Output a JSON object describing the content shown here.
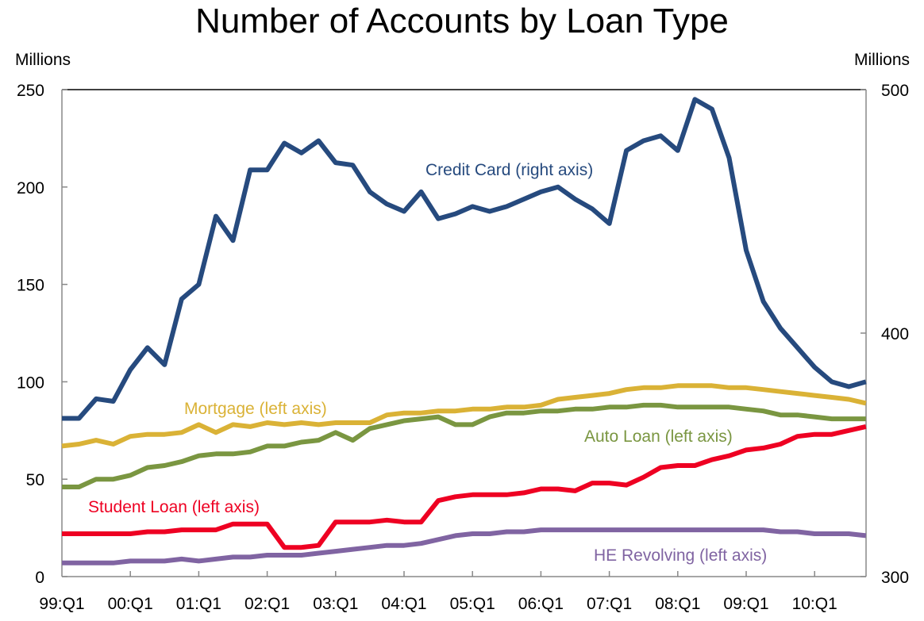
{
  "title": "Number of Accounts by Loan Type",
  "left_unit": "Millions",
  "right_unit": "Millions",
  "chart_data": {
    "type": "line",
    "title": "Number of Accounts by Loan Type",
    "xlabel": "",
    "ylabel_left": "Millions",
    "ylabel_right": "Millions",
    "ylim_left": [
      0,
      250
    ],
    "yticks_left": [
      0,
      50,
      100,
      150,
      200,
      250
    ],
    "ylim_right": [
      300,
      500
    ],
    "yticks_right": [
      300,
      400,
      500
    ],
    "grid": false,
    "legend_position": "inline labels",
    "x_tick_labels": [
      "99:Q1",
      "00:Q1",
      "01:Q1",
      "02:Q1",
      "03:Q1",
      "04:Q1",
      "05:Q1",
      "06:Q1",
      "07:Q1",
      "08:Q1",
      "09:Q1",
      "10:Q1"
    ],
    "x": [
      "99:Q1",
      "99:Q2",
      "99:Q3",
      "99:Q4",
      "00:Q1",
      "00:Q2",
      "00:Q3",
      "00:Q4",
      "01:Q1",
      "01:Q2",
      "01:Q3",
      "01:Q4",
      "02:Q1",
      "02:Q2",
      "02:Q3",
      "02:Q4",
      "03:Q1",
      "03:Q2",
      "03:Q3",
      "03:Q4",
      "04:Q1",
      "04:Q2",
      "04:Q3",
      "04:Q4",
      "05:Q1",
      "05:Q2",
      "05:Q3",
      "05:Q4",
      "06:Q1",
      "06:Q2",
      "06:Q3",
      "06:Q4",
      "07:Q1",
      "07:Q2",
      "07:Q3",
      "07:Q4",
      "08:Q1",
      "08:Q2",
      "08:Q3",
      "08:Q4",
      "09:Q1",
      "09:Q2",
      "09:Q3",
      "09:Q4",
      "10:Q1",
      "10:Q2",
      "10:Q3",
      "10:Q4"
    ],
    "series": [
      {
        "name": "Credit Card (right axis)",
        "axis": "right",
        "color": "#264a7e",
        "values": [
          365,
          365,
          373,
          372,
          385,
          394,
          387,
          414,
          420,
          448,
          438,
          467,
          467,
          478,
          474,
          479,
          470,
          469,
          458,
          453,
          450,
          458,
          447,
          449,
          452,
          450,
          452,
          455,
          458,
          460,
          455,
          451,
          445,
          475,
          479,
          481,
          475,
          496,
          492,
          472,
          434,
          413,
          402,
          394,
          386,
          380,
          378,
          380
        ]
      },
      {
        "name": "Mortgage (left axis)",
        "axis": "left",
        "color": "#dab236",
        "values": [
          67,
          68,
          70,
          68,
          72,
          73,
          73,
          74,
          78,
          74,
          78,
          77,
          79,
          78,
          79,
          78,
          79,
          79,
          79,
          83,
          84,
          84,
          85,
          85,
          86,
          86,
          87,
          87,
          88,
          91,
          92,
          93,
          94,
          96,
          97,
          97,
          98,
          98,
          98,
          97,
          97,
          96,
          95,
          94,
          93,
          92,
          91,
          89
        ]
      },
      {
        "name": "Auto Loan (left axis)",
        "axis": "left",
        "color": "#7a9641",
        "values": [
          46,
          46,
          50,
          50,
          52,
          56,
          57,
          59,
          62,
          63,
          63,
          64,
          67,
          67,
          69,
          70,
          74,
          70,
          76,
          78,
          80,
          81,
          82,
          78,
          78,
          82,
          84,
          84,
          85,
          85,
          86,
          86,
          87,
          87,
          88,
          88,
          87,
          87,
          87,
          87,
          86,
          85,
          83,
          83,
          82,
          81,
          81,
          81
        ]
      },
      {
        "name": "Student Loan (left axis)",
        "axis": "left",
        "color": "#ee0022",
        "values": [
          22,
          22,
          22,
          22,
          22,
          23,
          23,
          24,
          24,
          24,
          27,
          27,
          27,
          15,
          15,
          16,
          28,
          28,
          28,
          29,
          28,
          28,
          39,
          41,
          42,
          42,
          42,
          43,
          45,
          45,
          44,
          48,
          48,
          47,
          51,
          56,
          57,
          57,
          60,
          62,
          65,
          66,
          68,
          72,
          73,
          73,
          75,
          77
        ]
      },
      {
        "name": "HE Revolving (left axis)",
        "axis": "left",
        "color": "#8064a2",
        "values": [
          7,
          7,
          7,
          7,
          8,
          8,
          8,
          9,
          8,
          9,
          10,
          10,
          11,
          11,
          11,
          12,
          13,
          14,
          15,
          16,
          16,
          17,
          19,
          21,
          22,
          22,
          23,
          23,
          24,
          24,
          24,
          24,
          24,
          24,
          24,
          24,
          24,
          24,
          24,
          24,
          24,
          24,
          23,
          23,
          22,
          22,
          22,
          21
        ]
      }
    ]
  },
  "labels": {
    "credit_card": "Credit Card (right axis)",
    "mortgage": "Mortgage (left axis)",
    "auto_loan": "Auto Loan (left axis)",
    "student_loan": "Student Loan (left axis)",
    "he_revolving": "HE Revolving (left axis)"
  }
}
